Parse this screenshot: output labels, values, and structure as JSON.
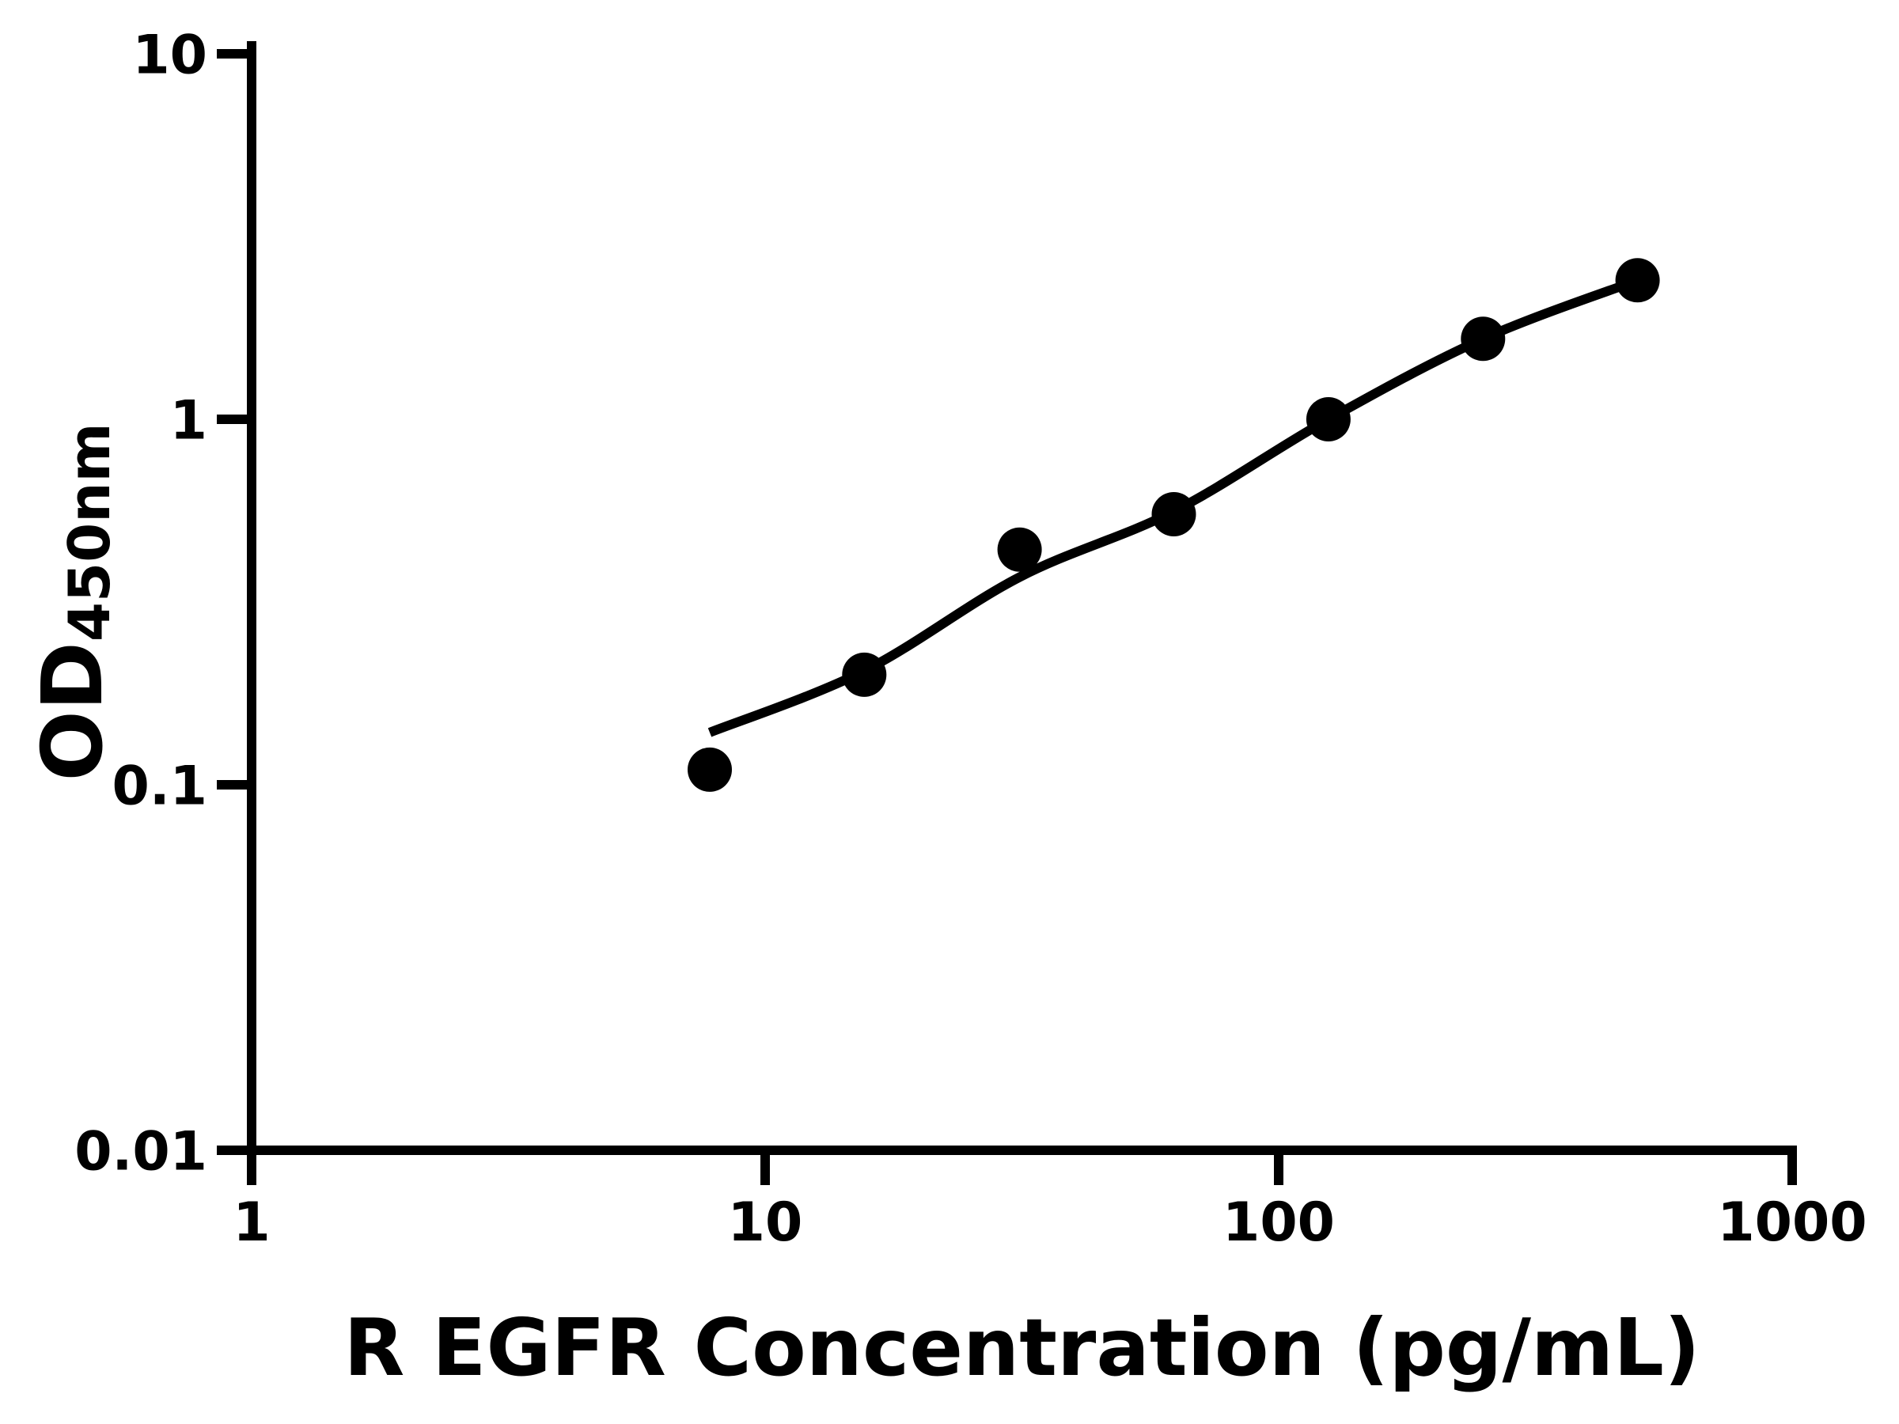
{
  "figure": {
    "background": "#ffffff",
    "foreground": "#000000",
    "description": "ELISA standard curve, log-log scatter plot with fitted line"
  },
  "chart_data": {
    "type": "scatter",
    "title": "",
    "xlabel": "R EGFR Concentration (pg/mL)",
    "ylabel_main": "OD",
    "ylabel_sub": "450nm",
    "x_scale": "log",
    "y_scale": "log",
    "xlim": [
      1,
      1000
    ],
    "ylim": [
      0.01,
      10
    ],
    "x_ticks": [
      1,
      10,
      100,
      1000
    ],
    "x_tick_labels": [
      "1",
      "10",
      "100",
      "1000"
    ],
    "y_ticks": [
      10,
      1,
      0.1,
      0.01
    ],
    "y_tick_labels": [
      "10",
      "1",
      "0.1",
      "0.01"
    ],
    "grid": false,
    "legend": "none",
    "marker_color": "#000000",
    "line_color": "#000000",
    "series": [
      {
        "name": "standard-points",
        "type": "scatter",
        "x": [
          7.8,
          15.6,
          31.3,
          62.5,
          125,
          250,
          500
        ],
        "y": [
          0.11,
          0.2,
          0.44,
          0.55,
          1.0,
          1.66,
          2.4
        ]
      },
      {
        "name": "fit-curve",
        "type": "line",
        "x": [
          7.8,
          15.6,
          31.3,
          62.5,
          125,
          250,
          500
        ],
        "y": [
          0.139,
          0.205,
          0.37,
          0.56,
          1.0,
          1.66,
          2.4
        ]
      }
    ]
  }
}
